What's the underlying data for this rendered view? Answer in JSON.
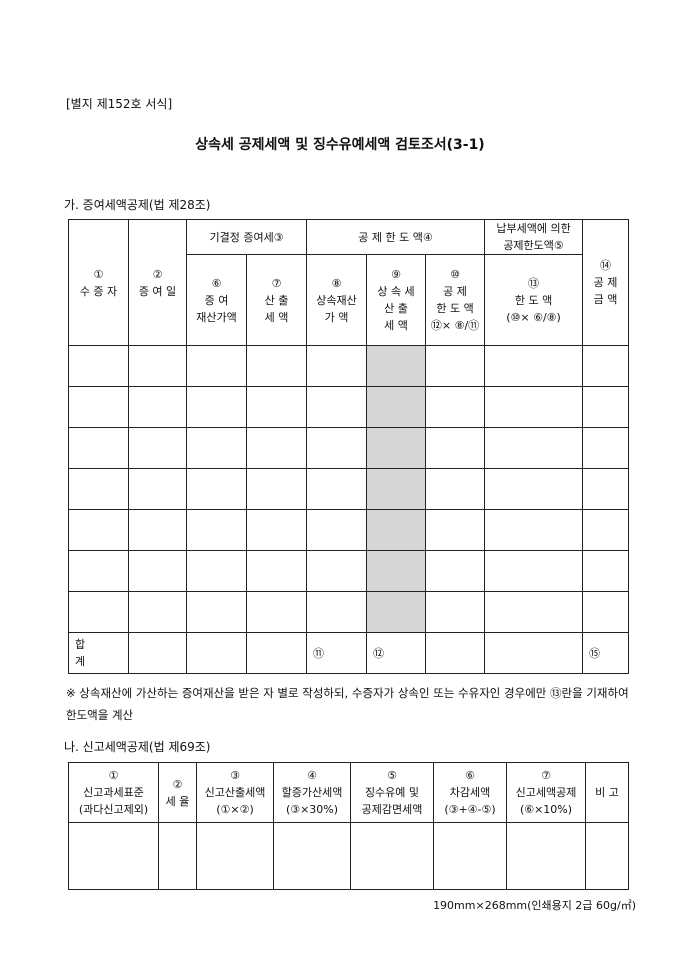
{
  "form_no": "[별지 제152호 서식]",
  "title": "상속세 공제세액 및 징수유예세액 검토조서(3-1)",
  "section1": {
    "heading": "가. 증여세액공제(법 제28조)",
    "group_headers": {
      "g3": "기결정 증여세③",
      "g4": "공 제 한 도 액④",
      "g5a": "납부세액에 의한",
      "g5b": "공제한도액⑤"
    },
    "col1": {
      "num": "①",
      "label": "수 증 자"
    },
    "col2": {
      "num": "②",
      "label": "증 여 일"
    },
    "col6": {
      "num": "⑥",
      "l1": "증    여",
      "l2": "재산가액"
    },
    "col7": {
      "num": "⑦",
      "l1": "산    출",
      "l2": "세    액"
    },
    "col8": {
      "num": "⑧",
      "l1": "상속재산",
      "l2": "가    액"
    },
    "col9": {
      "num": "⑨",
      "l1": "상 속 세",
      "l2": "산    출",
      "l3": "세    액"
    },
    "col10": {
      "num": "⑩",
      "l1": "공    제",
      "l2": "한 도 액",
      "l3": "⑫× ⑧/⑪"
    },
    "col13": {
      "num": "⑬",
      "l1": "한 도 액",
      "l2": "(⑩× ⑥/⑧)"
    },
    "col14": {
      "num": "⑭",
      "l1": "공  제",
      "l2": "금  액"
    },
    "data_rows": 7,
    "shaded_color": "#d6d6d6",
    "total": {
      "label": "합 계",
      "m11": "⑪",
      "m12": "⑫",
      "m15": "⑮"
    }
  },
  "note": "※ 상속재산에 가산하는 증여재산을 받은 자 별로 작성하되, 수증자가 상속인 또는 수유자인 경우에만 ⑬란을 기재하여 한도액을 계산",
  "section2": {
    "heading": "나. 신고세액공제(법 제69조)",
    "cols": [
      {
        "num": "①",
        "l1": "신고과세표준",
        "l2": "(과다신고제외)"
      },
      {
        "num": "②",
        "l1": "세 율",
        "l2": ""
      },
      {
        "num": "③",
        "l1": "신고산출세액",
        "l2": "(①×②)"
      },
      {
        "num": "④",
        "l1": "할증가산세액",
        "l2": "(③×30%)"
      },
      {
        "num": "⑤",
        "l1": "징수유예  및",
        "l2": "공제감면세액"
      },
      {
        "num": "⑥",
        "l1": "차감세액",
        "l2": "(③+④-⑤)"
      },
      {
        "num": "⑦",
        "l1": "신고세액공제",
        "l2": "(⑥×10%)"
      },
      {
        "num": "",
        "l1": "비  고",
        "l2": ""
      }
    ]
  },
  "footer": "190mm×268mm(인쇄용지 2급 60g/㎡)"
}
